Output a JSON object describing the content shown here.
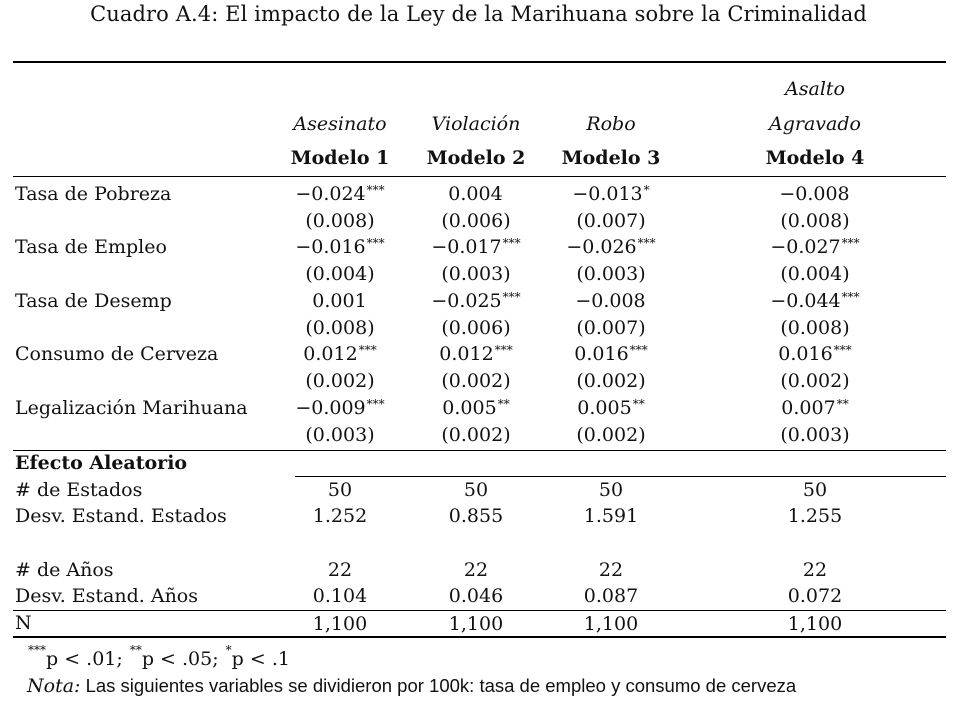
{
  "caption": "Cuadro A.4: El impacto de la Ley de la Marihuana sobre la Criminalidad",
  "columns": [
    {
      "title_line1": "",
      "title_line2": "Asesinato",
      "model": "Modelo 1"
    },
    {
      "title_line1": "",
      "title_line2": "Violación",
      "model": "Modelo 2"
    },
    {
      "title_line1": "",
      "title_line2": "Robo",
      "model": "Modelo 3"
    },
    {
      "title_line1": "Asalto",
      "title_line2": "Agravado",
      "model": "Modelo 4"
    }
  ],
  "rows": [
    {
      "label": "Tasa de Pobreza",
      "coef": [
        {
          "v": "−0.024",
          "s": "***"
        },
        {
          "v": "0.004",
          "s": ""
        },
        {
          "v": "−0.013",
          "s": "*"
        },
        {
          "v": "−0.008",
          "s": ""
        }
      ],
      "se": [
        "(0.008)",
        "(0.006)",
        "(0.007)",
        "(0.008)"
      ]
    },
    {
      "label": "Tasa de Empleo",
      "coef": [
        {
          "v": "−0.016",
          "s": "***"
        },
        {
          "v": "−0.017",
          "s": "***"
        },
        {
          "v": "−0.026",
          "s": "***"
        },
        {
          "v": "−0.027",
          "s": "***"
        }
      ],
      "se": [
        "(0.004)",
        "(0.003)",
        "(0.003)",
        "(0.004)"
      ]
    },
    {
      "label": "Tasa de Desemp",
      "coef": [
        {
          "v": "0.001",
          "s": ""
        },
        {
          "v": "−0.025",
          "s": "***"
        },
        {
          "v": "−0.008",
          "s": ""
        },
        {
          "v": "−0.044",
          "s": "***"
        }
      ],
      "se": [
        "(0.008)",
        "(0.006)",
        "(0.007)",
        "(0.008)"
      ]
    },
    {
      "label": "Consumo de Cerveza",
      "coef": [
        {
          "v": "0.012",
          "s": "***"
        },
        {
          "v": "0.012",
          "s": "***"
        },
        {
          "v": "0.016",
          "s": "***"
        },
        {
          "v": "0.016",
          "s": "***"
        }
      ],
      "se": [
        "(0.002)",
        "(0.002)",
        "(0.002)",
        "(0.002)"
      ]
    },
    {
      "label": "Legalización Marihuana",
      "coef": [
        {
          "v": "−0.009",
          "s": "***"
        },
        {
          "v": "0.005",
          "s": "**"
        },
        {
          "v": "0.005",
          "s": "**"
        },
        {
          "v": "0.007",
          "s": "**"
        }
      ],
      "se": [
        "(0.003)",
        "(0.002)",
        "(0.002)",
        "(0.003)"
      ]
    }
  ],
  "random_effects": {
    "section_label": "Efecto Aleatorio",
    "rows": [
      {
        "label": "# de Estados",
        "values": [
          "50",
          "50",
          "50",
          "50"
        ]
      },
      {
        "label": "Desv. Estand. Estados",
        "values": [
          "1.252",
          "0.855",
          "1.591",
          "1.255"
        ]
      },
      {
        "label": "# de Años",
        "values": [
          "22",
          "22",
          "22",
          "22"
        ]
      },
      {
        "label": "Desv. Estand. Años",
        "values": [
          "0.104",
          "0.046",
          "0.087",
          "0.072"
        ]
      }
    ]
  },
  "n_row": {
    "label": "N",
    "values": [
      "1,100",
      "1,100",
      "1,100",
      "1,100"
    ]
  },
  "footnote": {
    "sig_stars": [
      "***",
      "**",
      "*"
    ],
    "sig_text": [
      "p < .01; ",
      "p < .05; ",
      "p < .1"
    ],
    "note_label": "Nota:",
    "note_text": " Las siguientes variables se dividieron por 100k: tasa de empleo y consumo de cerveza"
  }
}
